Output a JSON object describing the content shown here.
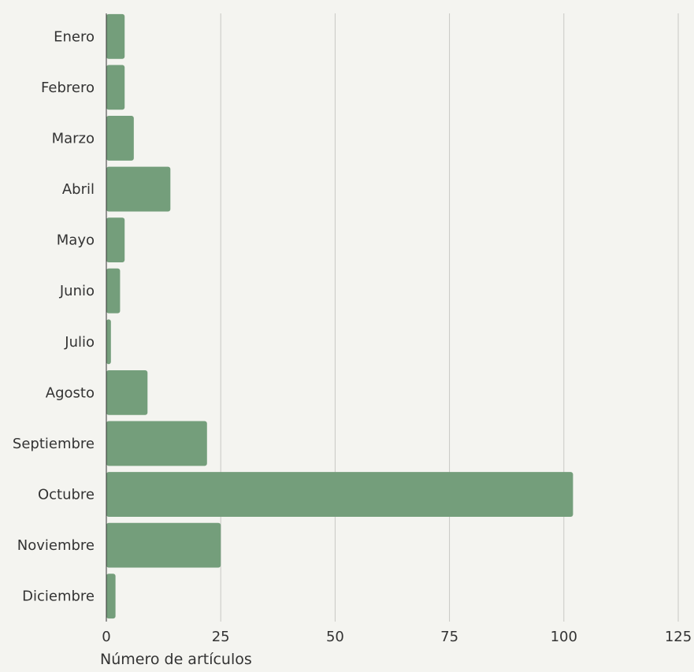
{
  "chart_data": {
    "type": "bar",
    "orientation": "horizontal",
    "categories": [
      "Enero",
      "Febrero",
      "Marzo",
      "Abril",
      "Mayo",
      "Junio",
      "Julio",
      "Agosto",
      "Septiembre",
      "Octubre",
      "Noviembre",
      "Diciembre"
    ],
    "values": [
      4,
      4,
      6,
      14,
      4,
      3,
      1,
      9,
      22,
      102,
      25,
      2
    ],
    "xlabel": "Número de artículos",
    "ylabel": "",
    "xlim": [
      0,
      125
    ],
    "xticks": [
      0,
      25,
      50,
      75,
      100,
      125
    ],
    "grid": "vertical",
    "colors": {
      "background": "#f4f4f0",
      "bar": "#749e7b",
      "grid": "#c8c8c4",
      "axis": "#333333",
      "text": "#333333"
    }
  }
}
